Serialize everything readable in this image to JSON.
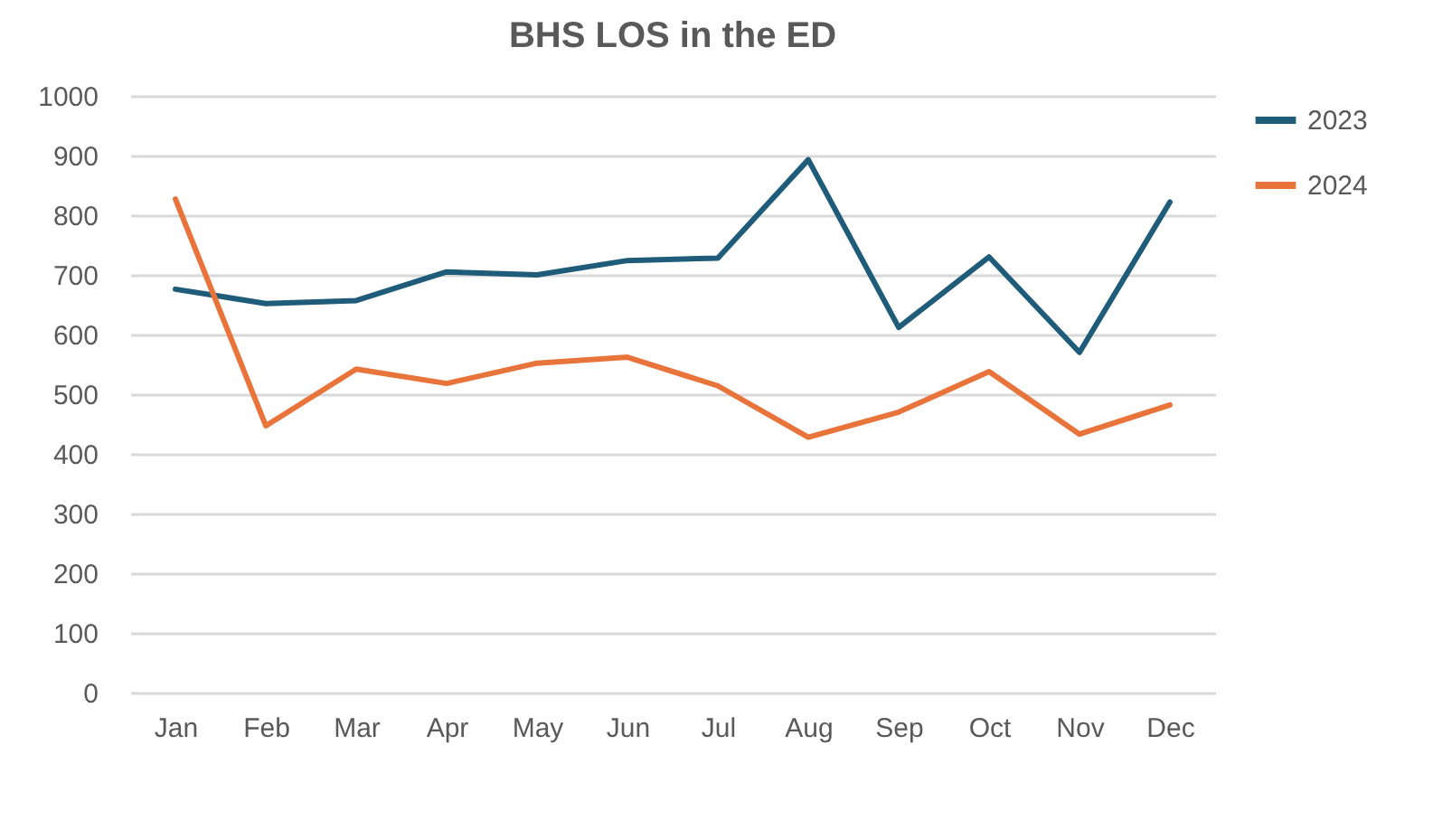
{
  "chart_data": {
    "type": "line",
    "title": "BHS LOS in the ED",
    "categories": [
      "Jan",
      "Feb",
      "Mar",
      "Apr",
      "May",
      "Jun",
      "Jul",
      "Aug",
      "Sep",
      "Oct",
      "Nov",
      "Dec"
    ],
    "series": [
      {
        "name": "2023",
        "color": "#1f5c7a",
        "values": [
          676,
          652,
          657,
          705,
          700,
          724,
          728,
          893,
          612,
          730,
          570,
          822
        ]
      },
      {
        "name": "2024",
        "color": "#e8743b",
        "values": [
          827,
          447,
          542,
          518,
          552,
          562,
          514,
          428,
          470,
          538,
          433,
          482
        ]
      }
    ],
    "ylim": [
      0,
      1000
    ],
    "yticks": [
      0,
      100,
      200,
      300,
      400,
      500,
      600,
      700,
      800,
      900,
      1000
    ],
    "grid": "y",
    "legend": "right",
    "marker": "none",
    "line_style": "solid"
  }
}
